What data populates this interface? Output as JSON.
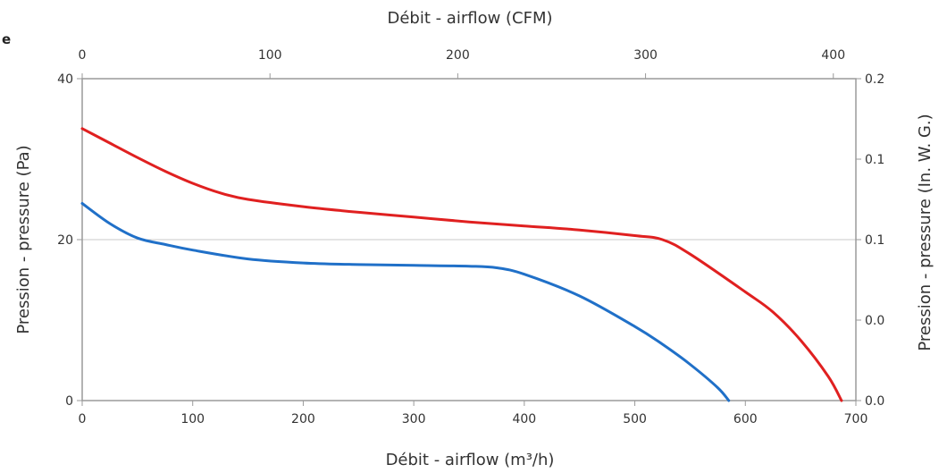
{
  "corner_label": "e",
  "chart_data": {
    "type": "line",
    "title": "",
    "xlabel_bottom": "Débit - airflow (m³/h)",
    "xlabel_top": "Débit - airflow (CFM)",
    "ylabel_left": "Pression - pressure (Pa)",
    "ylabel_right": "Pression - pressure (In. W. G.)",
    "xlim": [
      0,
      700
    ],
    "ylim": [
      0,
      40
    ],
    "x_ticks": [
      0,
      100,
      200,
      300,
      400,
      500,
      600,
      700
    ],
    "x_tick_labels": [
      "0",
      "100",
      "200",
      "300",
      "400",
      "500",
      "600",
      "700"
    ],
    "y_ticks": [
      0,
      20,
      40
    ],
    "y_tick_labels": [
      "0",
      "20",
      "40"
    ],
    "top_axis": {
      "ticks_cfm": [
        0,
        100,
        200,
        300,
        400
      ],
      "labels": [
        "0",
        "100",
        "200",
        "300",
        "400"
      ],
      "cfm_to_m3h": 1.699
    },
    "right_axis": {
      "ticks_pa": [
        0,
        10,
        20,
        30,
        40
      ],
      "labels": [
        "0.0",
        "0.0",
        "0.1",
        "0.1",
        "0.2"
      ]
    },
    "grid": "horizontal",
    "series": [
      {
        "color": "#e02020",
        "x": [
          0,
          25,
          50,
          75,
          100,
          125,
          150,
          200,
          250,
          300,
          350,
          400,
          450,
          500,
          525,
          550,
          600,
          625,
          650,
          675,
          687
        ],
        "y": [
          33.8,
          32.0,
          30.2,
          28.5,
          27.0,
          25.8,
          25.0,
          24.1,
          23.4,
          22.8,
          22.2,
          21.7,
          21.2,
          20.5,
          20.0,
          18.2,
          13.5,
          11.0,
          7.5,
          3.0,
          0
        ]
      },
      {
        "color": "#2070c8",
        "x": [
          0,
          25,
          50,
          75,
          100,
          150,
          200,
          250,
          300,
          350,
          375,
          400,
          450,
          500,
          525,
          550,
          575,
          585
        ],
        "y": [
          24.5,
          22.0,
          20.2,
          19.4,
          18.7,
          17.6,
          17.1,
          16.9,
          16.8,
          16.7,
          16.5,
          15.7,
          13.0,
          9.2,
          7.0,
          4.5,
          1.6,
          0
        ]
      }
    ]
  }
}
